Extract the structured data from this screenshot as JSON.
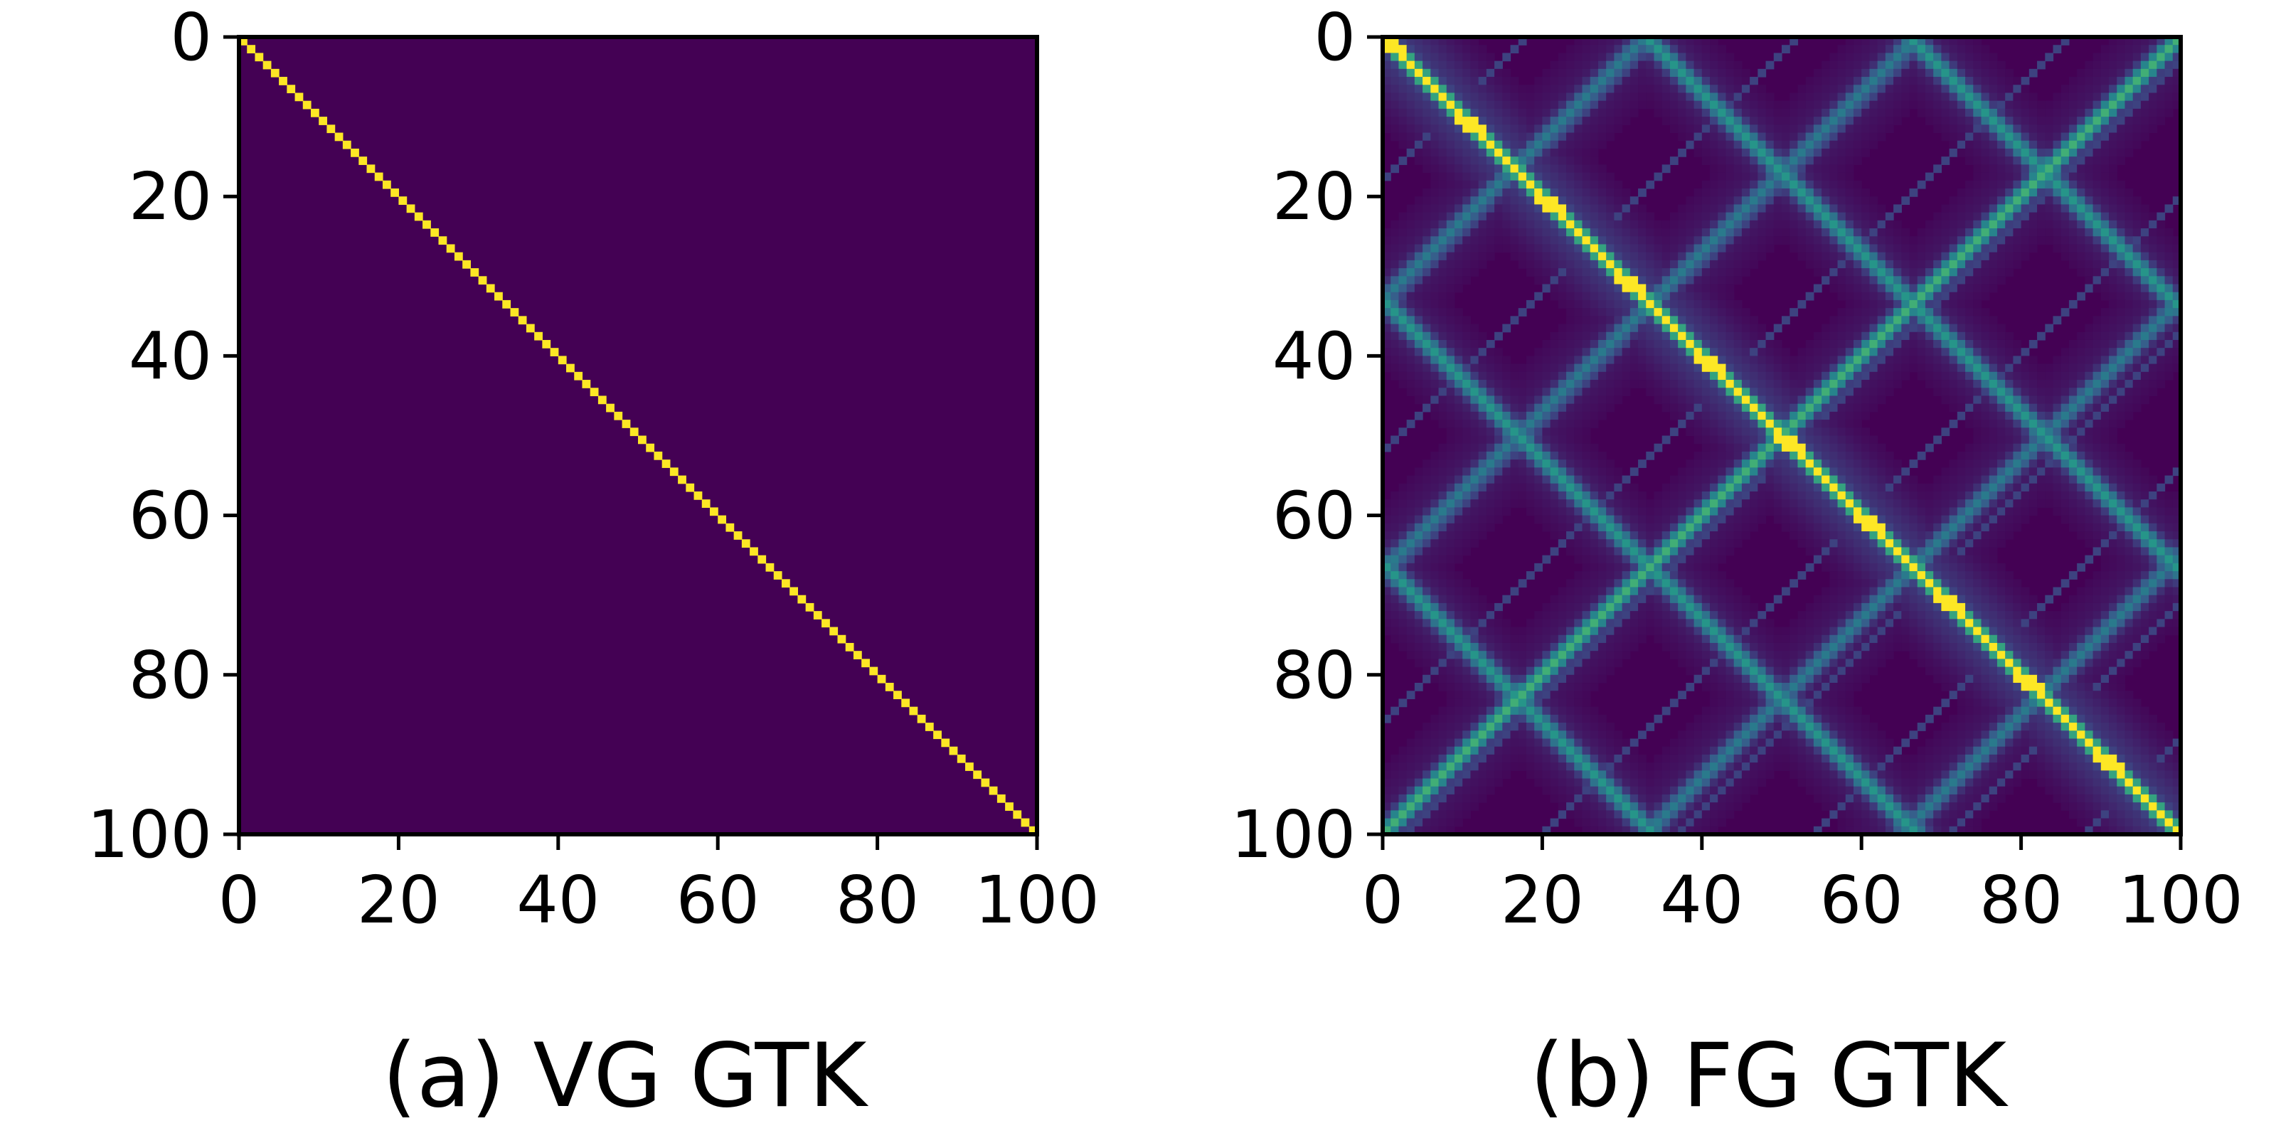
{
  "chart_data": [
    {
      "type": "heatmap",
      "caption": "(a) VG GTK",
      "title": "",
      "xlabel": "",
      "ylabel": "",
      "grid": false,
      "colormap": "viridis",
      "matrix_size": 100,
      "xlim": [
        0,
        100
      ],
      "ylim": [
        100,
        0
      ],
      "x_ticks": [
        "0",
        "20",
        "40",
        "60",
        "80",
        "100"
      ],
      "y_ticks": [
        "0",
        "20",
        "40",
        "60",
        "80",
        "100"
      ],
      "pattern": "identity",
      "value_range": [
        0,
        1
      ],
      "description_values": {
        "diagonal": 1,
        "off_diagonal": 0
      }
    },
    {
      "type": "heatmap",
      "caption": "(b) FG GTK",
      "title": "",
      "xlabel": "",
      "ylabel": "",
      "grid": false,
      "colormap": "viridis",
      "matrix_size": 100,
      "xlim": [
        0,
        100
      ],
      "ylim": [
        100,
        0
      ],
      "x_ticks": [
        "0",
        "20",
        "40",
        "60",
        "80",
        "100"
      ],
      "y_ticks": [
        "0",
        "20",
        "40",
        "60",
        "80",
        "100"
      ],
      "pattern": "banded-periodic",
      "value_range": [
        0,
        1
      ],
      "description_values": {
        "diagonal": 1,
        "main_antidiagonal": 0.55,
        "period": 33
      }
    }
  ],
  "colors": {
    "viridis_low": "#440154",
    "viridis_high": "#fde725",
    "axis": "#000000",
    "background": "#ffffff"
  }
}
